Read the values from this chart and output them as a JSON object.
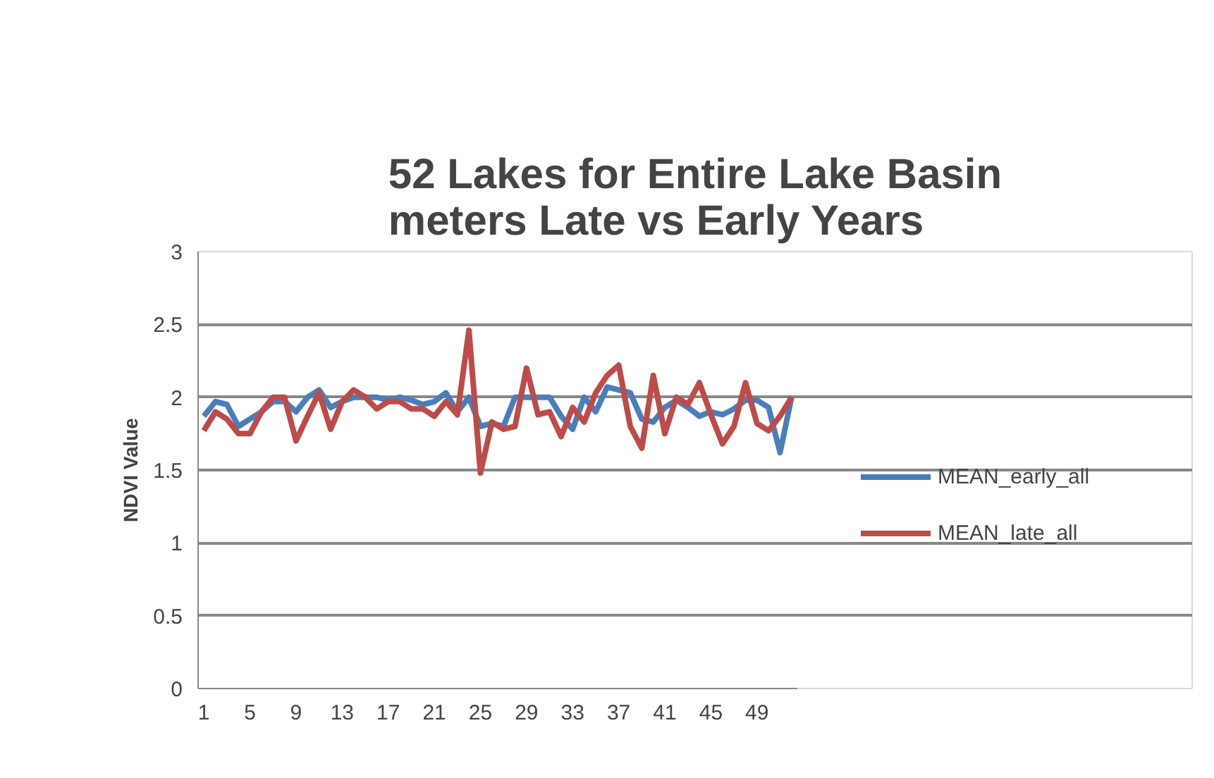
{
  "chart_data": {
    "type": "line",
    "title": "52 Lakes for Entire Lake Basin\nmeters Late vs Early Years",
    "ylabel": "NDVI Value",
    "categories": [
      "1",
      null,
      null,
      null,
      "5",
      null,
      null,
      null,
      "9",
      null,
      null,
      null,
      "13",
      null,
      null,
      null,
      "17",
      null,
      null,
      null,
      "21",
      null,
      null,
      null,
      "25",
      null,
      null,
      null,
      "29",
      null,
      null,
      null,
      "33",
      null,
      null,
      null,
      "37",
      null,
      null,
      null,
      "41",
      null,
      null,
      null,
      "45",
      null,
      null,
      null,
      "49",
      null,
      null,
      null
    ],
    "series": [
      {
        "name": "MEAN_early_all",
        "color": "#4a7ebb",
        "values": [
          1.87,
          1.97,
          1.95,
          1.8,
          1.85,
          1.9,
          1.97,
          1.97,
          1.9,
          2.0,
          2.05,
          1.93,
          1.97,
          2.0,
          2.0,
          2.0,
          1.98,
          2.0,
          1.98,
          1.95,
          1.97,
          2.03,
          1.9,
          2.0,
          1.8,
          1.82,
          1.8,
          2.0,
          2.0,
          2.0,
          2.0,
          1.87,
          1.78,
          2.0,
          1.9,
          2.07,
          2.05,
          2.03,
          1.85,
          1.83,
          1.93,
          1.98,
          1.93,
          1.87,
          1.9,
          1.88,
          1.92,
          1.98,
          1.98,
          1.93,
          1.62,
          2.0
        ]
      },
      {
        "name": "MEAN_late_all",
        "color": "#be4b48",
        "values": [
          1.77,
          1.9,
          1.85,
          1.75,
          1.75,
          1.9,
          2.0,
          2.0,
          1.7,
          1.87,
          2.03,
          1.78,
          1.97,
          2.05,
          2.0,
          1.92,
          1.97,
          1.97,
          1.92,
          1.92,
          1.87,
          1.97,
          1.88,
          2.46,
          1.48,
          1.83,
          1.78,
          1.8,
          2.2,
          1.88,
          1.9,
          1.73,
          1.93,
          1.83,
          2.03,
          2.15,
          2.22,
          1.8,
          1.65,
          2.15,
          1.75,
          2.0,
          1.95,
          2.1,
          1.88,
          1.68,
          1.8,
          2.1,
          1.82,
          1.77,
          1.87,
          2.0
        ]
      }
    ],
    "ylim": [
      0,
      3
    ],
    "yticks": [
      0,
      0.5,
      1,
      1.5,
      2,
      2.5,
      3
    ],
    "grid": "y",
    "legend": "right",
    "line_style": "solid"
  }
}
